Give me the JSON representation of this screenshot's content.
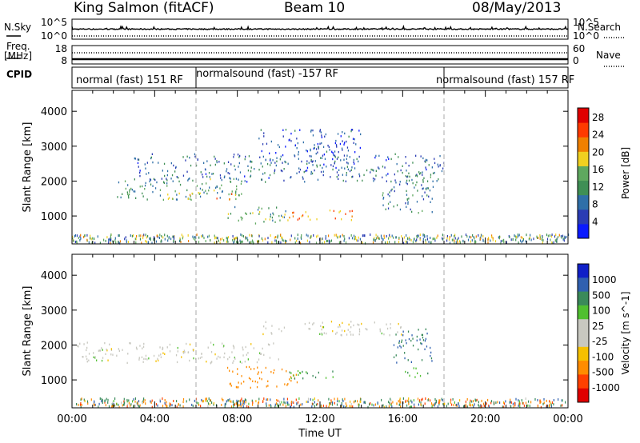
{
  "header": {
    "station": "King Salmon (fitACF)",
    "beam": "Beam 10",
    "date": "08/May/2013"
  },
  "side_labels": {
    "nsky": "N.Sky",
    "freq_top": "Freq.",
    "freq_unit": "[MHz]",
    "cpid": "CPID",
    "nsearch": "N.Search",
    "nave": "Nave"
  },
  "cpid_segments": [
    {
      "label": "normal (fast) 151 RF",
      "start_h": 0,
      "end_h": 6
    },
    {
      "label": "normalsound (fast) -157 RF",
      "start_h": 6,
      "end_h": 18
    },
    {
      "label": "normalsound (fast) 157 RF",
      "start_h": 18,
      "end_h": 24
    }
  ],
  "colors": {
    "power_scale": [
      "#0a1aff",
      "#2a3cb4",
      "#2f6fa8",
      "#3f8f55",
      "#5fa85f",
      "#f0d020",
      "#f08000",
      "#ff3a00",
      "#e00000"
    ],
    "velocity_scale": [
      "#e00000",
      "#ff4000",
      "#ff8c00",
      "#f5c000",
      "#c8c8c0",
      "#c8c8c0",
      "#50c030",
      "#3a8a5a",
      "#3060b0",
      "#1020c8"
    ]
  },
  "chart_data": [
    {
      "type": "line",
      "title": "",
      "ylabel_left": "N.Sky",
      "ylabel_right": "N.Search",
      "yticks_left": [
        "10^5",
        "10^0"
      ],
      "yticks_right": [
        "10^5",
        "10^0"
      ],
      "series": [
        {
          "name": "N.Sky",
          "style": "solid",
          "values_approx": "~10^2.5 constant"
        },
        {
          "name": "N.Search",
          "style": "dotted",
          "values_approx": "~10^0 constant"
        }
      ]
    },
    {
      "type": "line",
      "ylabel_left": "Freq. [MHz]",
      "ylabel_right": "Nave",
      "yticks_left": [
        "18",
        "8"
      ],
      "yticks_right": [
        "60",
        "0"
      ],
      "series": [
        {
          "name": "Freq.",
          "style": "solid",
          "value_approx": 10.5
        },
        {
          "name": "Nave",
          "style": "dotted",
          "value_approx": 24
        }
      ]
    },
    {
      "type": "heatmap",
      "ylabel": "Slant Range [km]",
      "xlabel": "Time UT",
      "xticks": [
        "00:00",
        "04:00",
        "08:00",
        "12:00",
        "16:00",
        "20:00",
        "00:00"
      ],
      "xlim_h": [
        0,
        24
      ],
      "yticks": [
        1000,
        2000,
        3000,
        4000
      ],
      "ylim": [
        200,
        4600
      ],
      "colorbar_label": "Power [dB]",
      "colorbar_ticks": [
        4,
        8,
        12,
        16,
        20,
        24,
        28
      ],
      "colorbar_range": [
        0,
        30
      ],
      "features": [
        {
          "t0": 2.0,
          "t1": 8.2,
          "r0": 1480,
          "r1": 2100,
          "level": 12
        },
        {
          "t0": 4.5,
          "t1": 8.0,
          "r0": 1500,
          "r1": 1700,
          "level": 20
        },
        {
          "t0": 7.5,
          "t1": 10.5,
          "r0": 800,
          "r1": 1300,
          "level": 14
        },
        {
          "t0": 10.5,
          "t1": 13.6,
          "r0": 900,
          "r1": 1200,
          "level": 22
        },
        {
          "t0": 3.0,
          "t1": 18.0,
          "r0": 2000,
          "r1": 2800,
          "level": 8
        },
        {
          "t0": 9.0,
          "t1": 14.0,
          "r0": 2500,
          "r1": 3500,
          "level": 6
        },
        {
          "t0": 15.0,
          "t1": 17.5,
          "r0": 1100,
          "r1": 2300,
          "level": 10
        }
      ]
    },
    {
      "type": "heatmap",
      "ylabel": "Slant Range [km]",
      "xlabel": "Time UT",
      "xticks": [
        "00:00",
        "04:00",
        "08:00",
        "12:00",
        "16:00",
        "20:00",
        "00:00"
      ],
      "xlim_h": [
        0,
        24
      ],
      "yticks": [
        1000,
        2000,
        3000,
        4000
      ],
      "ylim": [
        200,
        4600
      ],
      "colorbar_label": "Velocity [m s^-1]",
      "colorbar_ticks": [
        1000,
        500,
        100,
        25,
        -25,
        -100,
        -500,
        -1000
      ],
      "features": [
        {
          "t0": 0.0,
          "t1": 10.0,
          "r0": 1500,
          "r1": 2100,
          "vel": 0
        },
        {
          "t0": 7.5,
          "t1": 11.0,
          "r0": 800,
          "r1": 1400,
          "vel": -300
        },
        {
          "t0": 10.5,
          "t1": 13.0,
          "r0": 1000,
          "r1": 1300,
          "vel": 100
        },
        {
          "t0": 9.0,
          "t1": 16.0,
          "r0": 2300,
          "r1": 2700,
          "vel": 0
        },
        {
          "t0": 15.5,
          "t1": 17.5,
          "r0": 1500,
          "r1": 2500,
          "vel": 500
        },
        {
          "t0": 16.0,
          "t1": 17.2,
          "r0": 1100,
          "r1": 1400,
          "vel": 80
        }
      ]
    }
  ]
}
